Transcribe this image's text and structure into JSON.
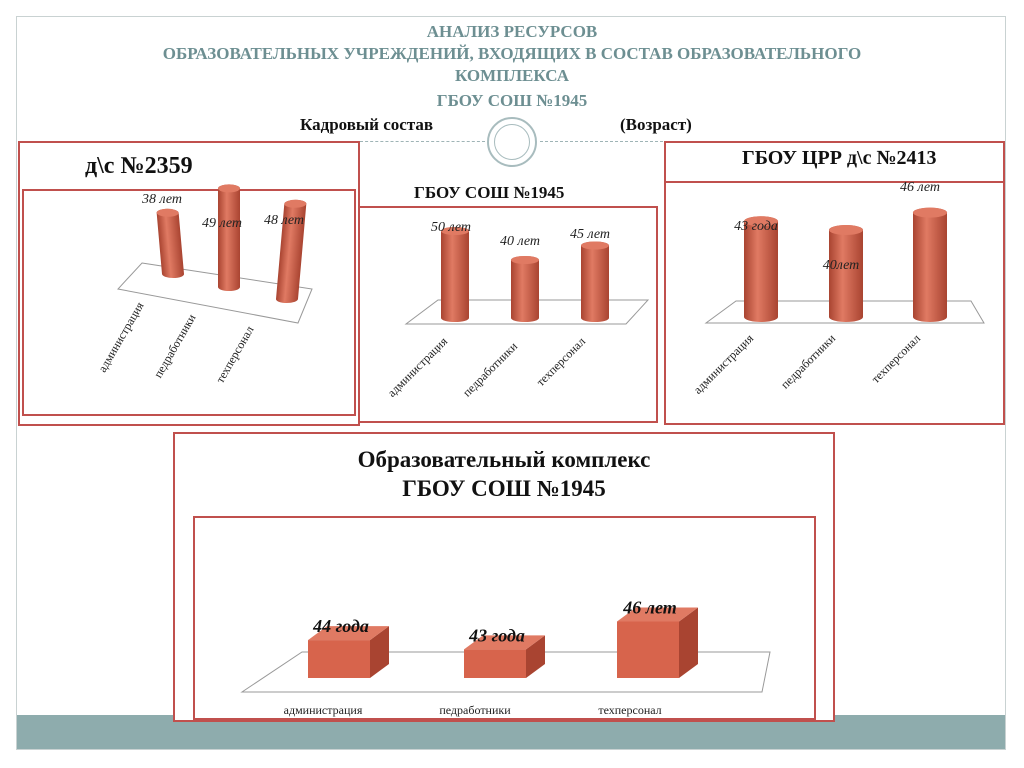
{
  "title_lines": [
    "АНАЛИЗ РЕСУРСОВ",
    "ОБРАЗОВАТЕЛЬНЫХ УЧРЕЖДЕНИЙ, ВХОДЯЩИХ В СОСТАВ ОБРАЗОВАТЕЛЬНОГО",
    "КОМПЛЕКСА",
    "ГБОУ СОШ №1945"
  ],
  "subtitle_left": "Кадровый состав",
  "subtitle_right": "(Возраст)",
  "colors": {
    "bar": "#d7644c",
    "bar_side": "#a94431",
    "bar_top": "#e07a63",
    "frame": "#c0504d",
    "heading": "#6d8f92",
    "band": "#8eacad"
  },
  "chart_data": [
    {
      "type": "bar",
      "title": "д\\с №2359",
      "categories": [
        "администрация",
        "педработники",
        "техперсонал"
      ],
      "values": [
        38,
        49,
        48
      ],
      "data_labels": [
        "38 лет",
        "49 лет",
        "48 лет"
      ]
    },
    {
      "type": "bar",
      "title": "ГБОУ СОШ №1945",
      "categories": [
        "администрация",
        "педработники",
        "техперсонал"
      ],
      "values": [
        50,
        40,
        45
      ],
      "data_labels": [
        "50 лет",
        "40 лет",
        "45 лет"
      ]
    },
    {
      "type": "bar",
      "title": "ГБОУ ЦРР д\\с №2413",
      "categories": [
        "администрация",
        "педработники",
        "техперсонал"
      ],
      "values": [
        43,
        40,
        46
      ],
      "data_labels": [
        "43 года",
        "40лет",
        "46 лет"
      ]
    },
    {
      "type": "bar",
      "title": "Образовательный комплекс\nГБОУ СОШ №1945",
      "categories": [
        "администрация",
        "педработники",
        "техперсонал"
      ],
      "values": [
        44,
        43,
        46
      ],
      "data_labels": [
        "44 года",
        "43 года",
        "46 лет"
      ]
    }
  ]
}
